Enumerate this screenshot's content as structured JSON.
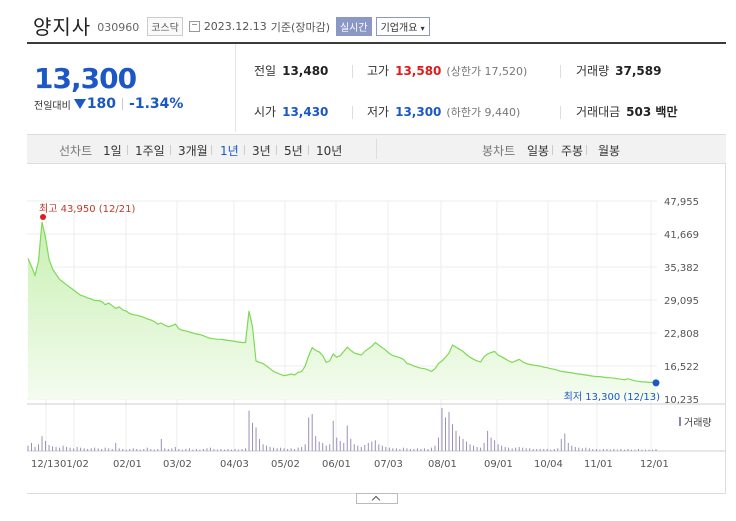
{
  "header": {
    "name": "양지사",
    "code": "030960",
    "market": "코스닥",
    "date": "2023.12.13",
    "basis": "기준(장마감)",
    "realtime": "실시간",
    "company_info": "기업개요"
  },
  "price": {
    "current": "13,300",
    "change_label": "전일대비",
    "change": "180",
    "change_pct": "-1.34%",
    "direction": "down"
  },
  "stats": {
    "prev_close_label": "전일",
    "prev_close": "13,480",
    "high_label": "고가",
    "high": "13,580",
    "upper_limit": "(상한가 17,520)",
    "volume_label": "거래량",
    "volume": "37,589",
    "open_label": "시가",
    "open": "13,430",
    "low_label": "저가",
    "low": "13,300",
    "lower_limit": "(하한가 9,440)",
    "amount_label": "거래대금",
    "amount": "503 백만"
  },
  "tabs": {
    "line_label": "선차트",
    "line": [
      "1일",
      "1주일",
      "3개월",
      "1년",
      "3년",
      "5년",
      "10년"
    ],
    "active": "1년",
    "candle_label": "봉차트",
    "candle": [
      "일봉",
      "주봉",
      "월봉"
    ]
  },
  "chart_data": {
    "type": "area",
    "y_ticks": [
      "47,955",
      "41,669",
      "35,382",
      "29,095",
      "22,808",
      "16,522",
      "10,235"
    ],
    "ylim": [
      10235,
      47955
    ],
    "x_ticks": [
      "12/13",
      "01/02",
      "02/01",
      "03/02",
      "04/03",
      "05/02",
      "06/01",
      "07/03",
      "08/01",
      "09/01",
      "10/04",
      "11/01",
      "12/01"
    ],
    "max_label": "최고 43,950 (12/21)",
    "min_label": "최저 13,300 (12/13)",
    "volume_legend": "거래량",
    "line_color": "#7ed957",
    "fill_color": "#dff7d3",
    "values": [
      37000,
      35500,
      33800,
      36500,
      43950,
      41000,
      36800,
      35000,
      34000,
      33000,
      32500,
      32000,
      31500,
      31000,
      30500,
      30000,
      29800,
      29500,
      29300,
      29000,
      29000,
      28800,
      28200,
      28500,
      28000,
      27500,
      27800,
      27200,
      27000,
      26500,
      26300,
      26200,
      26000,
      25800,
      25500,
      25300,
      25000,
      24500,
      24700,
      24300,
      24000,
      24200,
      24500,
      23600,
      23300,
      23200,
      23000,
      22800,
      22600,
      22500,
      22300,
      22000,
      21800,
      21700,
      21600,
      21600,
      21500,
      21400,
      21300,
      21200,
      21100,
      21000,
      21000,
      27000,
      24000,
      17500,
      17200,
      17000,
      16500,
      16000,
      15500,
      15200,
      14900,
      14700,
      14800,
      15000,
      14800,
      15300,
      15500,
      16500,
      18500,
      20000,
      19500,
      19200,
      18500,
      17200,
      17500,
      18800,
      18200,
      18500,
      19300,
      20100,
      19500,
      19000,
      18800,
      18600,
      19300,
      19800,
      20300,
      21000,
      20500,
      20000,
      19500,
      18900,
      18500,
      18300,
      18100,
      17800,
      17000,
      16800,
      16500,
      16300,
      16100,
      16000,
      15800,
      15500,
      16000,
      17000,
      17500,
      18200,
      19000,
      20500,
      20100,
      19700,
      19300,
      18700,
      18200,
      17800,
      17500,
      17300,
      18300,
      18800,
      19100,
      19300,
      18600,
      18300,
      17900,
      17500,
      17200,
      17500,
      17800,
      17300,
      17000,
      16800,
      16700,
      16600,
      16500,
      16300,
      16200,
      16000,
      15900,
      15700,
      15500,
      15400,
      15300,
      15200,
      15100,
      15000,
      14900,
      14800,
      14700,
      14600,
      14500,
      14500,
      14400,
      14300,
      14300,
      14200,
      14100,
      14000,
      13900,
      14100,
      13900,
      13700,
      13600,
      13500,
      13500,
      13400,
      13400,
      13300
    ],
    "volume": [
      8,
      12,
      6,
      10,
      22,
      15,
      9,
      7,
      6,
      5,
      8,
      6,
      5,
      4,
      6,
      5,
      4,
      3,
      4,
      5,
      4,
      3,
      5,
      4,
      3,
      12,
      4,
      3,
      2,
      3,
      4,
      3,
      2,
      3,
      5,
      3,
      2,
      3,
      18,
      4,
      3,
      4,
      6,
      3,
      2,
      3,
      4,
      2,
      3,
      2,
      3,
      4,
      5,
      3,
      2,
      3,
      2,
      3,
      2,
      3,
      2,
      3,
      4,
      60,
      42,
      35,
      18,
      10,
      8,
      6,
      5,
      4,
      5,
      4,
      3,
      4,
      3,
      5,
      6,
      10,
      50,
      55,
      22,
      14,
      12,
      8,
      10,
      45,
      20,
      15,
      12,
      38,
      18,
      10,
      8,
      6,
      9,
      12,
      14,
      16,
      10,
      8,
      6,
      5,
      4,
      4,
      3,
      5,
      4,
      3,
      3,
      4,
      3,
      4,
      3,
      5,
      8,
      20,
      64,
      50,
      58,
      40,
      30,
      22,
      18,
      14,
      10,
      8,
      6,
      5,
      12,
      30,
      20,
      16,
      10,
      8,
      6,
      5,
      4,
      5,
      6,
      5,
      4,
      4,
      3,
      3,
      3,
      3,
      3,
      2,
      3,
      4,
      18,
      26,
      12,
      8,
      6,
      5,
      4,
      5,
      4,
      3,
      3,
      2,
      3,
      3,
      2,
      3,
      2,
      3,
      2,
      3,
      2,
      2,
      3,
      2,
      2,
      2,
      2,
      3
    ]
  }
}
